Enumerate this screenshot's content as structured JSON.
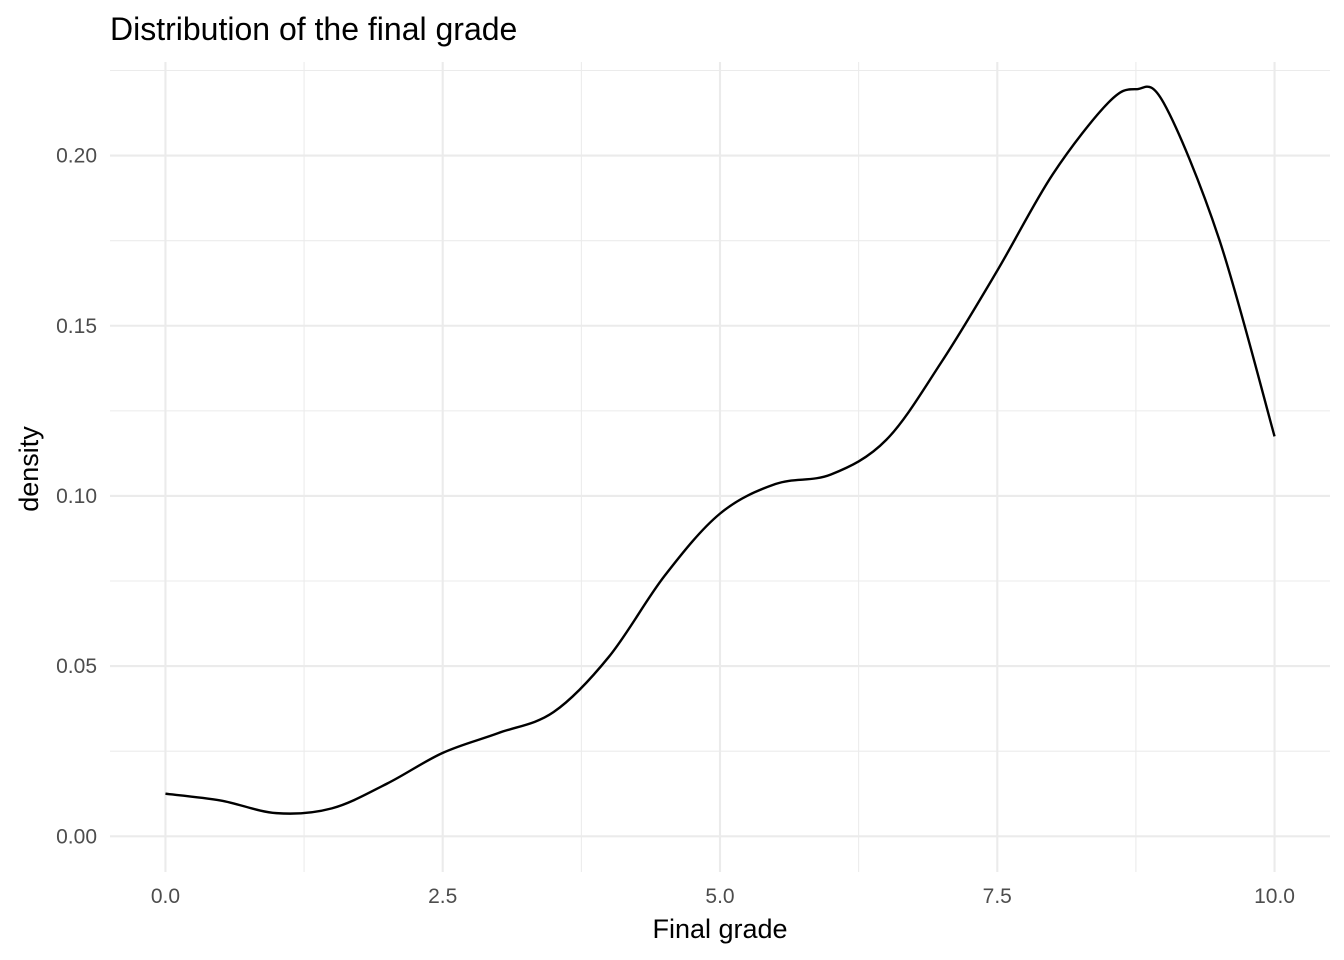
{
  "chart_data": {
    "type": "area",
    "geom": "density",
    "title": "Distribution of the final grade",
    "xlabel": "Final grade",
    "ylabel": "density",
    "xlim": [
      -0.5,
      10.5
    ],
    "ylim": [
      -0.0105,
      0.2275
    ],
    "x_ticks": [
      0,
      2.5,
      5,
      7.5,
      10
    ],
    "x_tick_labels": [
      "0.0",
      "2.5",
      "5.0",
      "7.5",
      "10.0"
    ],
    "y_ticks": [
      0,
      0.05,
      0.1,
      0.15,
      0.2
    ],
    "y_tick_labels": [
      "0.00",
      "0.05",
      "0.10",
      "0.15",
      "0.20"
    ],
    "grid": true,
    "series": [
      {
        "x": [
          0.0,
          0.5,
          1.0,
          1.5,
          2.0,
          2.5,
          3.0,
          3.5,
          4.0,
          4.5,
          5.0,
          5.5,
          6.0,
          6.5,
          7.0,
          7.5,
          8.0,
          8.5,
          8.75,
          9.0,
          9.5,
          10.0
        ],
        "y": [
          0.0125,
          0.0105,
          0.0068,
          0.0082,
          0.0155,
          0.0245,
          0.0303,
          0.0365,
          0.0528,
          0.0765,
          0.0948,
          0.1035,
          0.1063,
          0.1165,
          0.1395,
          0.1662,
          0.1945,
          0.2155,
          0.2195,
          0.2155,
          0.1755,
          0.1175
        ]
      }
    ]
  }
}
